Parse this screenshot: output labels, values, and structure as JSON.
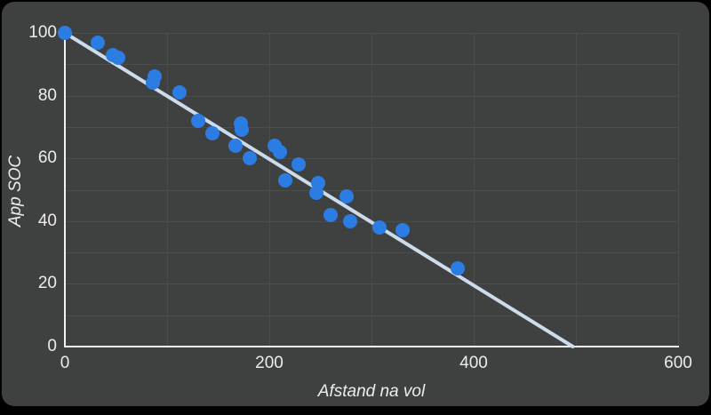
{
  "widget": {
    "background_color": "#000000",
    "card_color": "#3f4141"
  },
  "chart_data": {
    "type": "scatter",
    "title": "",
    "xlabel": "Afstand na vol",
    "ylabel": "App SOC",
    "xlim": [
      0,
      600
    ],
    "ylim": [
      0,
      100
    ],
    "x_ticks": [
      0,
      200,
      400,
      600
    ],
    "y_ticks": [
      0,
      20,
      40,
      60,
      80,
      100
    ],
    "x_grid_step": 100,
    "y_grid_step": 10,
    "grid": "on",
    "legend": "none",
    "points": [
      [
        0,
        100
      ],
      [
        32,
        97
      ],
      [
        47,
        93
      ],
      [
        52,
        92
      ],
      [
        88,
        86
      ],
      [
        86,
        84
      ],
      [
        112,
        81
      ],
      [
        130,
        72
      ],
      [
        144,
        68
      ],
      [
        172,
        71
      ],
      [
        173,
        69
      ],
      [
        167,
        64
      ],
      [
        181,
        60
      ],
      [
        205,
        64
      ],
      [
        210,
        62
      ],
      [
        229,
        58
      ],
      [
        216,
        53
      ],
      [
        248,
        52
      ],
      [
        246,
        49
      ],
      [
        276,
        48
      ],
      [
        260,
        42
      ],
      [
        279,
        40
      ],
      [
        308,
        38
      ],
      [
        330,
        37
      ],
      [
        384,
        25
      ]
    ],
    "trendline": {
      "x1": 0,
      "y1": 100,
      "x2": 497,
      "y2": 0
    },
    "colors": {
      "point": "#2b7de3",
      "trendline": "#cddcec",
      "axis": "#f1f1f1",
      "grid": "#4a4d4c",
      "text": "#ececec"
    }
  }
}
